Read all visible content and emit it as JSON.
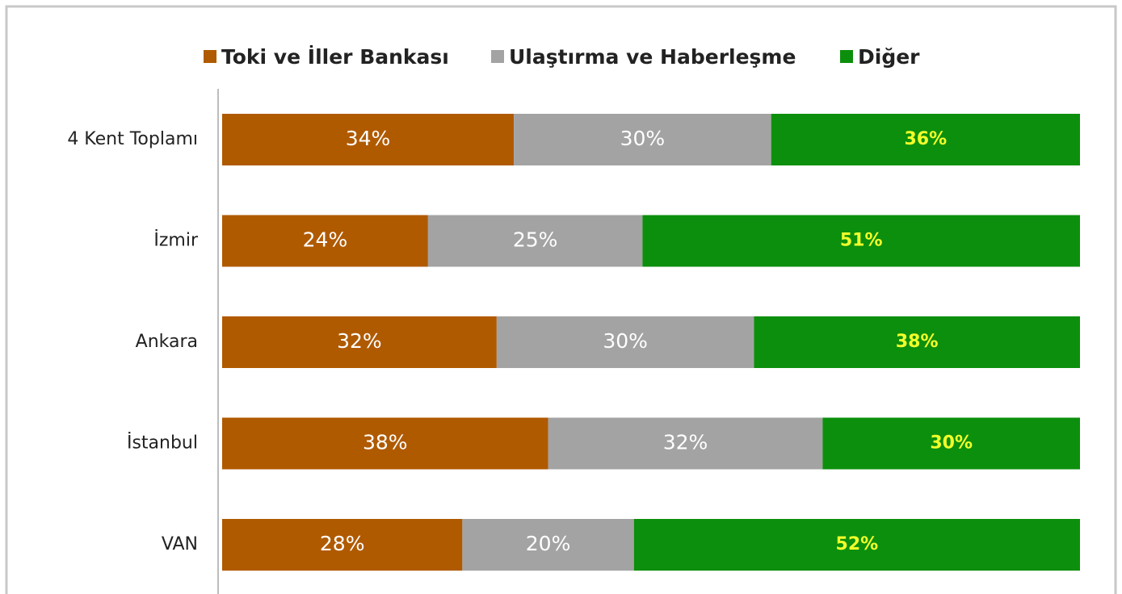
{
  "chart_data": {
    "type": "stacked-barh",
    "categories": [
      "4 Kent Toplamı",
      "İzmir",
      "Ankara",
      "İstanbul",
      "VAN"
    ],
    "series": [
      {
        "name": "Toki ve İller Bankası",
        "color": "#b05a00",
        "label_color": "#ffffff",
        "values": [
          34,
          24,
          32,
          38,
          28
        ],
        "value_labels": [
          "34%",
          "24%",
          "32%",
          "38%",
          "28%"
        ]
      },
      {
        "name": "Ulaştırma ve Haberleşme",
        "color": "#a3a3a3",
        "label_color": "#ffffff",
        "values": [
          30,
          25,
          30,
          32,
          20
        ],
        "value_labels": [
          "30%",
          "25%",
          "30%",
          "32%",
          "20%"
        ]
      },
      {
        "name": "Diğer",
        "color": "#0c8f0c",
        "label_color": "#f2ff2a",
        "values": [
          36,
          51,
          38,
          30,
          52
        ],
        "value_labels": [
          "36%",
          "51%",
          "38%",
          "30%",
          "52%"
        ]
      }
    ],
    "xlim": [
      0,
      100
    ],
    "legend": "top"
  }
}
